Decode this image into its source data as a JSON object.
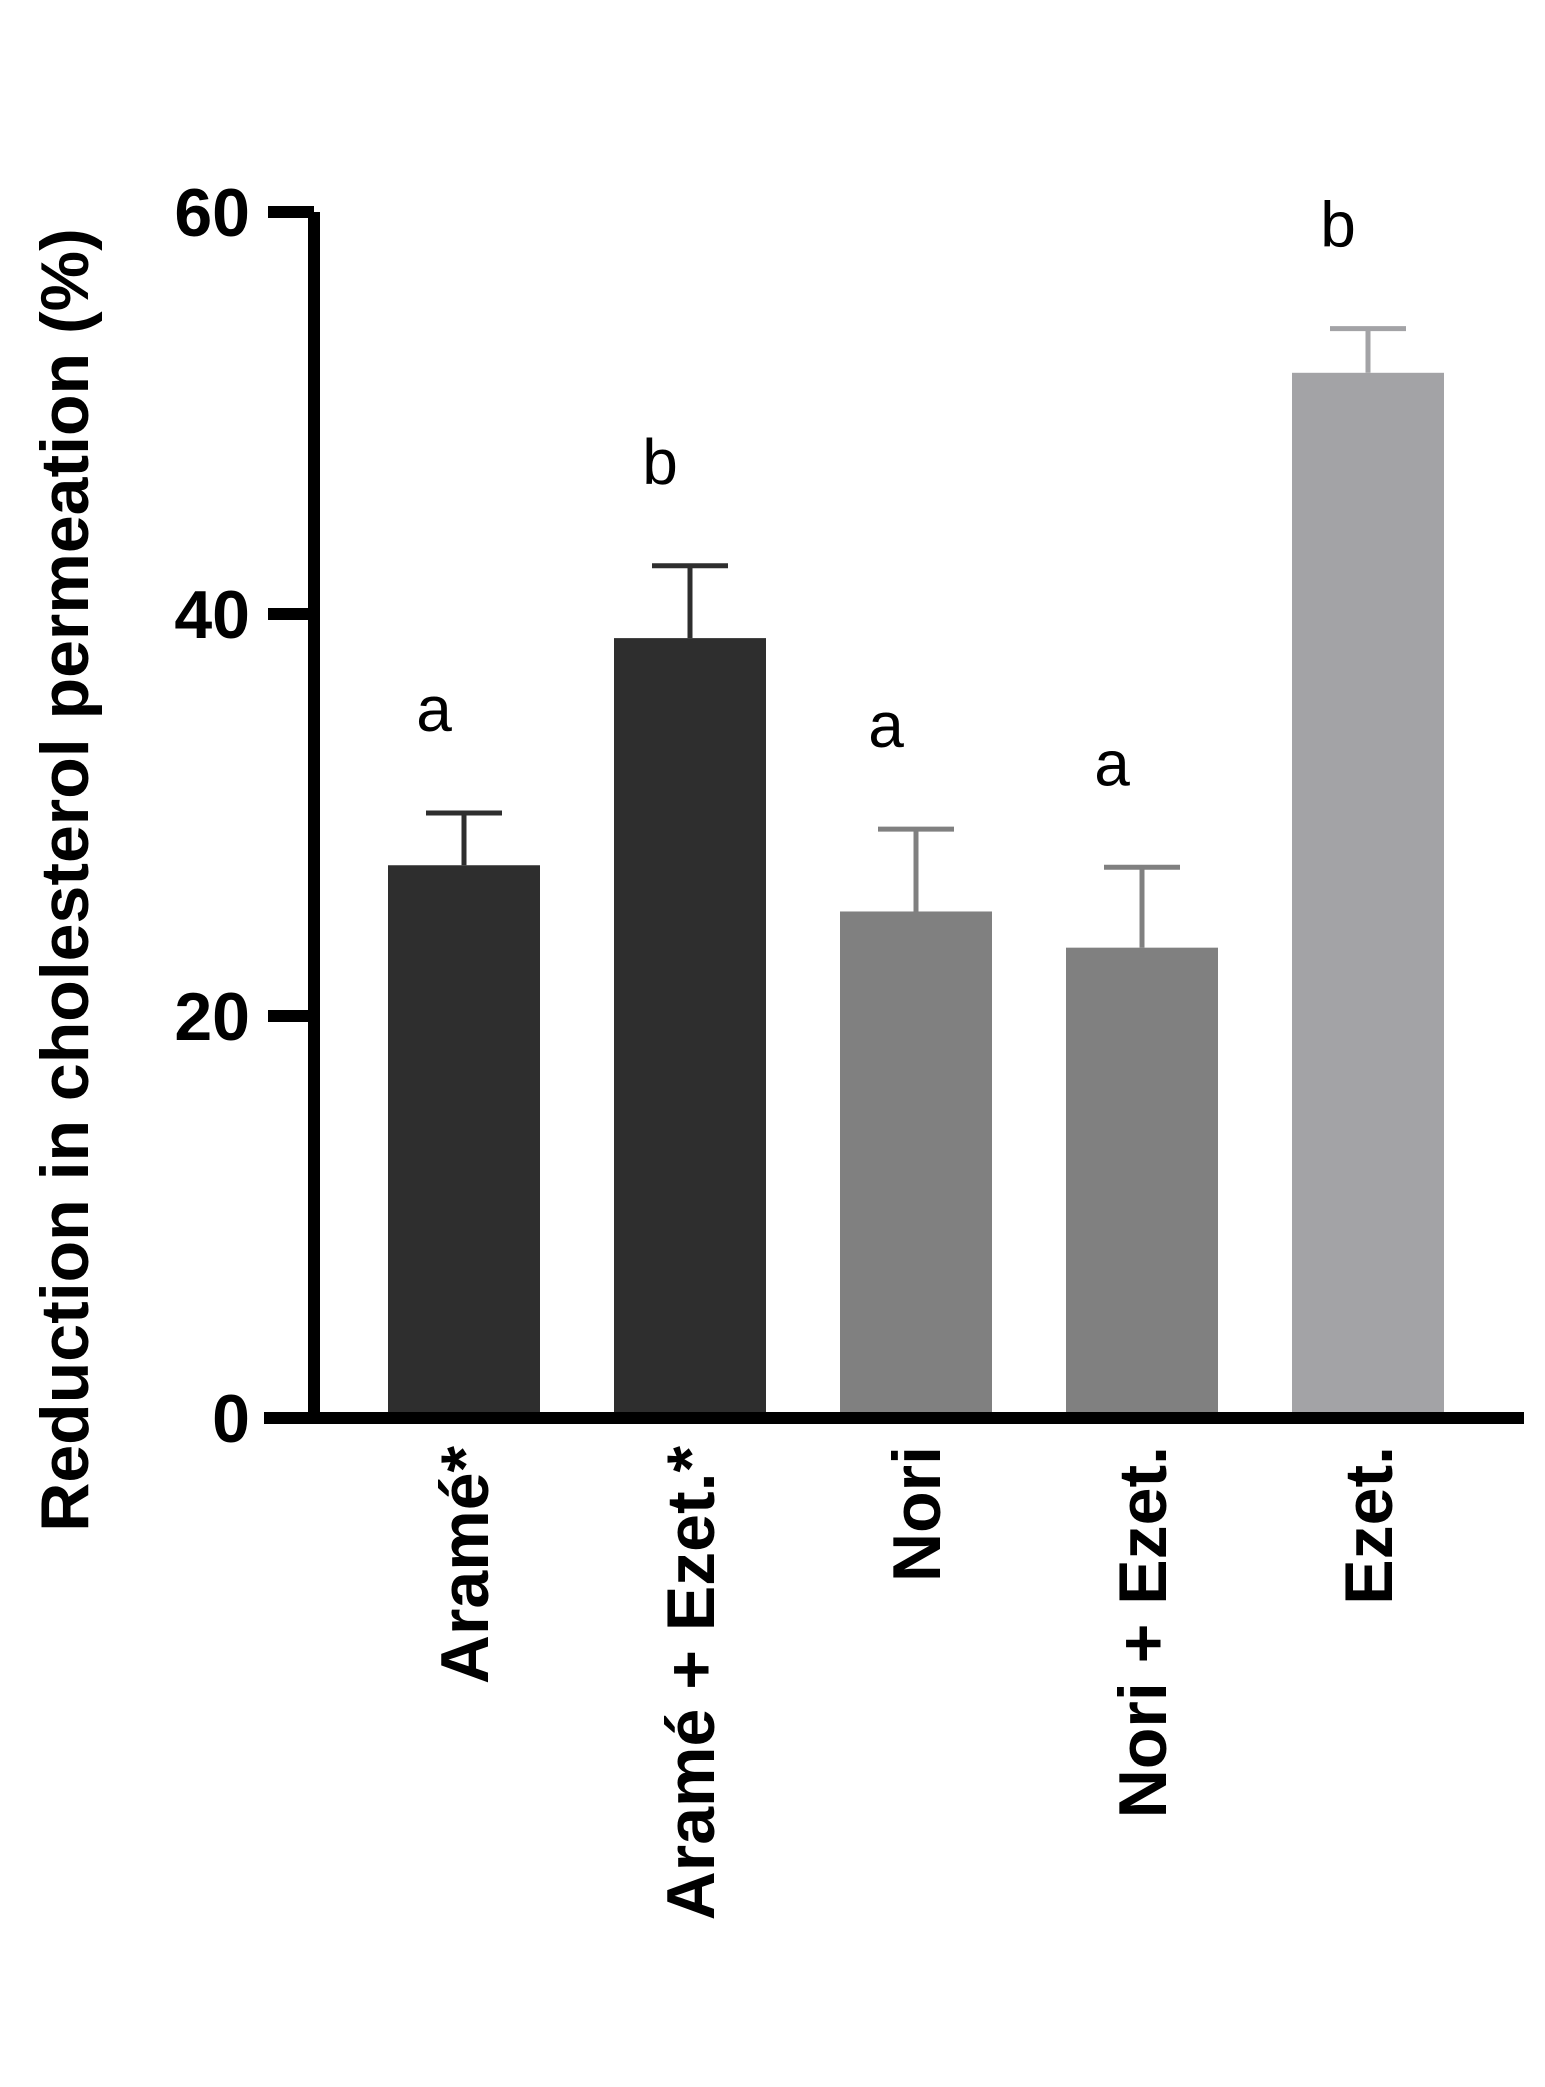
{
  "chart_data": {
    "type": "bar",
    "title": "",
    "xlabel": "",
    "ylabel": "Reduction in cholesterol permeation (%)",
    "ylim": [
      0,
      60
    ],
    "yticks": [
      0,
      20,
      40,
      60
    ],
    "ytick_labels": [
      "0",
      "20",
      "40",
      "60"
    ],
    "categories": [
      "Aramé*",
      "Aramé + Ezet.*",
      "Nori",
      "Nori + Ezet.",
      "Ezet."
    ],
    "values": [
      27.5,
      38.8,
      25.2,
      23.4,
      52.0
    ],
    "errors": [
      2.6,
      3.6,
      4.1,
      4.0,
      2.2
    ],
    "significance": [
      "a",
      "b",
      "a",
      "a",
      "b"
    ],
    "colors": [
      "#2e2e2e",
      "#2e2e2e",
      "#808080",
      "#808080",
      "#a3a3a6"
    ],
    "errorbar_colors": [
      "#2e2e2e",
      "#2e2e2e",
      "#808080",
      "#808080",
      "#a3a3a6"
    ],
    "grid": false,
    "legend": "none"
  }
}
